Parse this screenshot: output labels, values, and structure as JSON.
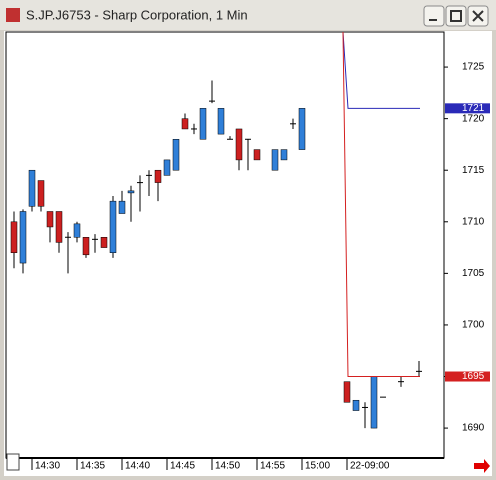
{
  "window": {
    "title": "S.JP.J6753 - Sharp Corporation, 1 Min"
  },
  "chart_data": {
    "type": "candlestick",
    "categories": [
      null,
      null,
      "14:30",
      null,
      null,
      null,
      null,
      "14:35",
      null,
      null,
      null,
      null,
      "14:40",
      null,
      null,
      null,
      null,
      "14:45",
      null,
      null,
      null,
      null,
      "14:50",
      null,
      null,
      null,
      null,
      "14:55",
      null,
      null,
      null,
      null,
      "15:00",
      null,
      null,
      null,
      null,
      "22-09:00",
      null,
      null,
      null,
      null,
      null,
      null,
      null,
      null
    ],
    "open": [
      1710,
      1706,
      1711.5,
      1714,
      1711,
      1711,
      1708.5,
      1708.5,
      1708.5,
      1708.3,
      1708.5,
      1707,
      1710.8,
      1712.8,
      1713.8,
      1714.5,
      1715,
      1714.5,
      1715,
      1720,
      1719,
      1718,
      1721.7,
      1718.5,
      1718,
      1719,
      1718,
      1717,
      null,
      1715,
      1716,
      1719.5,
      1717,
      null,
      null,
      null,
      null,
      1694.5,
      1691.7,
      1692,
      1690,
      1693,
      null,
      1694.5,
      null,
      1695.5
    ],
    "high": [
      1711,
      1711.2,
      1715,
      1714,
      1711,
      1711,
      1709,
      1710,
      1708.5,
      1708.8,
      1708.5,
      1712.5,
      1713,
      1713.5,
      1714.5,
      1715,
      1715,
      1716,
      1718,
      1720.5,
      1719.5,
      1721,
      1723.7,
      1721,
      1718.3,
      1719,
      1718,
      1717,
      null,
      1717,
      1717,
      1720,
      1721,
      null,
      null,
      null,
      null,
      1694.5,
      1692.7,
      1692.5,
      1695,
      1693,
      null,
      1695,
      null,
      1696.5
    ],
    "low": [
      1705.5,
      1705,
      1711,
      1711,
      1708,
      1707,
      1705,
      1708,
      1706.5,
      1707,
      1707.5,
      1706.5,
      1710.8,
      1710,
      1711,
      1712.5,
      1712,
      1714.5,
      1715,
      1719,
      1718.5,
      1718,
      1721.5,
      1718.5,
      1718,
      1715,
      1715,
      1716,
      null,
      1715,
      1716,
      1719,
      1717,
      null,
      null,
      null,
      null,
      1692.5,
      1691.7,
      1690,
      1690,
      1693,
      null,
      1694,
      null,
      1695
    ],
    "close": [
      1707,
      1711,
      1715,
      1711.5,
      1709.5,
      1708,
      1708.5,
      1709.8,
      1706.8,
      1708.3,
      1707.5,
      1712,
      1712,
      1713,
      1713.8,
      1714.5,
      1713.8,
      1716,
      1718,
      1719,
      1719,
      1721,
      1721.7,
      1721,
      1718,
      1716,
      1718,
      1716,
      null,
      1717,
      1717,
      1719.5,
      1721,
      null,
      null,
      null,
      null,
      1692.5,
      1692.7,
      1692,
      1695,
      1693,
      null,
      1694.5,
      null,
      1695.5
    ],
    "up_color": "#2f7fd8",
    "down_color": "#cc2020",
    "doji_color": "#000000",
    "levels": [
      {
        "value": 1721,
        "color": "#2a2ab8"
      },
      {
        "value": 1695,
        "color": "#d42020"
      }
    ],
    "ylim": [
      1687.1,
      1728.4
    ],
    "yticks": [
      1690,
      1695,
      1700,
      1705,
      1710,
      1715,
      1720,
      1725
    ]
  }
}
